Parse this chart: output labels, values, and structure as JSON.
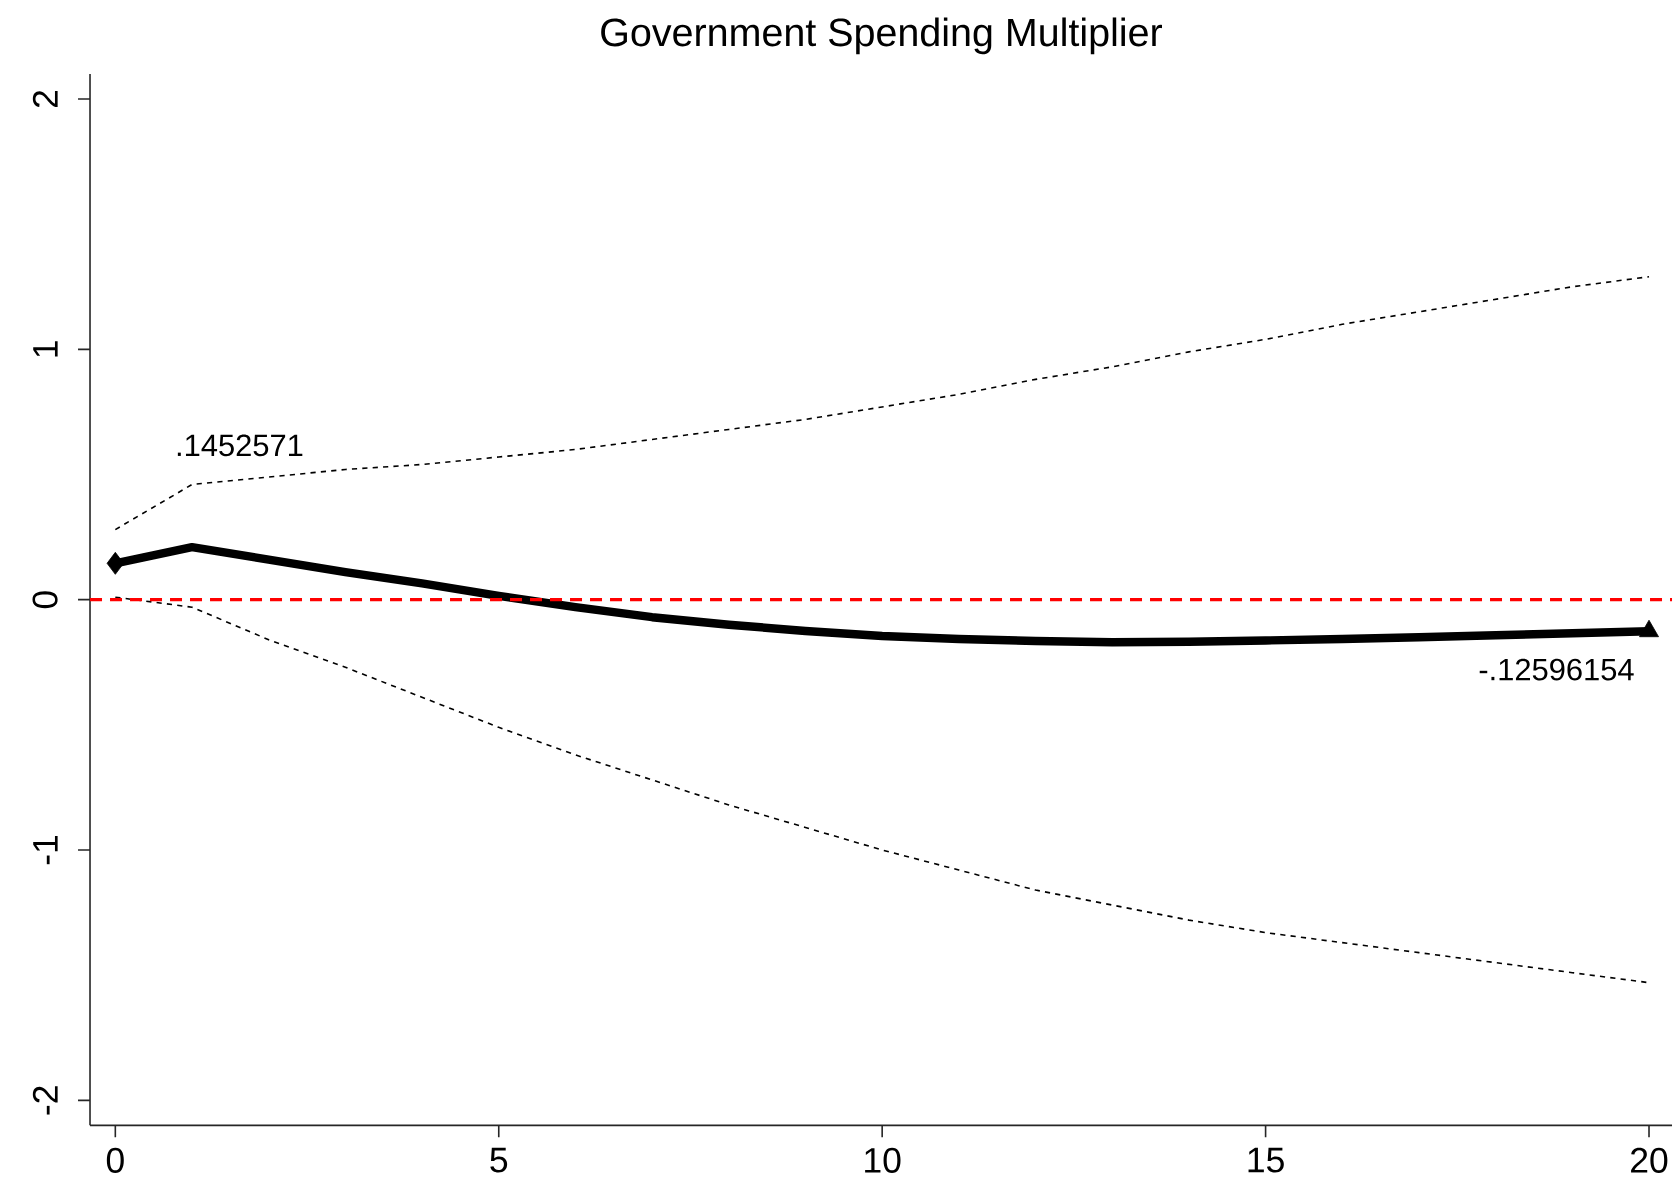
{
  "chart_data": {
    "type": "line",
    "title": "Government Spending Multiplier",
    "x": [
      0,
      1,
      2,
      3,
      4,
      5,
      6,
      7,
      8,
      9,
      10,
      11,
      12,
      13,
      14,
      15,
      16,
      17,
      18,
      19,
      20
    ],
    "series": [
      {
        "color": "#000000",
        "line_style": "dotted",
        "values": [
          0.28,
          0.46,
          0.49,
          0.52,
          0.54,
          0.57,
          0.6,
          0.64,
          0.68,
          0.72,
          0.77,
          0.82,
          0.88,
          0.93,
          0.99,
          1.04,
          1.1,
          1.15,
          1.2,
          1.25,
          1.29
        ]
      },
      {
        "color": "#000000",
        "line_style": "dotted",
        "values": [
          0.01,
          -0.03,
          -0.16,
          -0.27,
          -0.39,
          -0.51,
          -0.62,
          -0.72,
          -0.82,
          -0.91,
          -1.0,
          -1.08,
          -1.16,
          -1.22,
          -1.28,
          -1.33,
          -1.37,
          -1.41,
          -1.45,
          -1.49,
          -1.53
        ]
      },
      {
        "color": "#000000",
        "line_style": "solid",
        "values": [
          0.1452571,
          0.21,
          0.16,
          0.11,
          0.065,
          0.015,
          -0.03,
          -0.07,
          -0.1,
          -0.125,
          -0.145,
          -0.157,
          -0.165,
          -0.17,
          -0.168,
          -0.163,
          -0.157,
          -0.15,
          -0.142,
          -0.134,
          -0.12596154
        ]
      },
      {
        "type": "scatter",
        "color": "#000000",
        "marker": "diamond",
        "x": [
          0
        ],
        "values": [
          0.1452571
        ]
      },
      {
        "type": "scatter",
        "color": "#000000",
        "marker": "triangle",
        "x": [
          20
        ],
        "values": [
          -0.12596154
        ]
      }
    ],
    "ref_lines": [
      {
        "axis": "y",
        "value": 0,
        "color": "#ff0000",
        "line_style": "dashed"
      }
    ],
    "annotations": [
      ".1452571",
      {
        "text": "-.12596154",
        "x": 20,
        "y": -0.12596154
      }
    ],
    "xlim": [
      -0.33,
      20.3
    ],
    "ylim": [
      -2.1,
      2.1
    ],
    "xticks": [
      0,
      5,
      10,
      15,
      20
    ],
    "yticks": [
      -2,
      -1,
      0,
      1,
      2
    ]
  }
}
